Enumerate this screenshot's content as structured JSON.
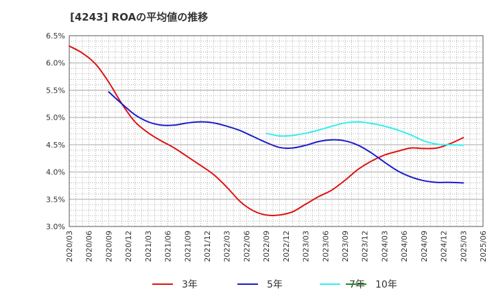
{
  "chart_data": {
    "type": "line",
    "title": "[4243]  ROAの平均値の推移",
    "xlabel": "",
    "ylabel": "",
    "ylim": [
      3.0,
      6.5
    ],
    "grid": true,
    "legend_position": "bottom",
    "y_ticks": [
      "3.0%",
      "3.5%",
      "4.0%",
      "4.5%",
      "5.0%",
      "5.5%",
      "6.0%",
      "6.5%"
    ],
    "x_ticks": [
      "2020/03",
      "2020/06",
      "2020/09",
      "2020/12",
      "2021/03",
      "2021/06",
      "2021/09",
      "2021/12",
      "2022/03",
      "2022/06",
      "2022/09",
      "2022/12",
      "2023/03",
      "2023/06",
      "2023/09",
      "2023/12",
      "2024/03",
      "2024/06",
      "2024/09",
      "2024/12",
      "2025/03",
      "2025/06"
    ],
    "series": [
      {
        "name": "3年",
        "color": "#dd1111",
        "points": [
          [
            "2020/03",
            6.31
          ],
          [
            "2020/05",
            6.18
          ],
          [
            "2020/07",
            5.98
          ],
          [
            "2020/09",
            5.65
          ],
          [
            "2020/11",
            5.25
          ],
          [
            "2021/01",
            4.92
          ],
          [
            "2021/03",
            4.72
          ],
          [
            "2021/05",
            4.57
          ],
          [
            "2021/07",
            4.44
          ],
          [
            "2021/09",
            4.28
          ],
          [
            "2021/11",
            4.12
          ],
          [
            "2022/01",
            3.95
          ],
          [
            "2022/03",
            3.72
          ],
          [
            "2022/05",
            3.46
          ],
          [
            "2022/07",
            3.29
          ],
          [
            "2022/09",
            3.21
          ],
          [
            "2022/11",
            3.21
          ],
          [
            "2023/01",
            3.27
          ],
          [
            "2023/03",
            3.41
          ],
          [
            "2023/05",
            3.55
          ],
          [
            "2023/07",
            3.67
          ],
          [
            "2023/09",
            3.85
          ],
          [
            "2023/11",
            4.05
          ],
          [
            "2024/01",
            4.2
          ],
          [
            "2024/03",
            4.31
          ],
          [
            "2024/05",
            4.38
          ],
          [
            "2024/07",
            4.44
          ],
          [
            "2024/09",
            4.43
          ],
          [
            "2024/11",
            4.44
          ],
          [
            "2025/01",
            4.52
          ],
          [
            "2025/03",
            4.63
          ]
        ]
      },
      {
        "name": "5年",
        "color": "#1a1acc",
        "points": [
          [
            "2020/09",
            5.47
          ],
          [
            "2020/11",
            5.25
          ],
          [
            "2021/01",
            5.05
          ],
          [
            "2021/03",
            4.92
          ],
          [
            "2021/05",
            4.86
          ],
          [
            "2021/07",
            4.86
          ],
          [
            "2021/09",
            4.9
          ],
          [
            "2021/11",
            4.92
          ],
          [
            "2022/01",
            4.9
          ],
          [
            "2022/03",
            4.84
          ],
          [
            "2022/05",
            4.76
          ],
          [
            "2022/07",
            4.65
          ],
          [
            "2022/09",
            4.54
          ],
          [
            "2022/11",
            4.45
          ],
          [
            "2023/01",
            4.44
          ],
          [
            "2023/03",
            4.49
          ],
          [
            "2023/05",
            4.56
          ],
          [
            "2023/07",
            4.59
          ],
          [
            "2023/09",
            4.57
          ],
          [
            "2023/11",
            4.49
          ],
          [
            "2024/01",
            4.35
          ],
          [
            "2024/03",
            4.18
          ],
          [
            "2024/05",
            4.02
          ],
          [
            "2024/07",
            3.91
          ],
          [
            "2024/09",
            3.84
          ],
          [
            "2024/11",
            3.81
          ],
          [
            "2025/01",
            3.81
          ],
          [
            "2025/03",
            3.8
          ]
        ]
      },
      {
        "name": "7年",
        "color": "#33eeee",
        "points": [
          [
            "2022/09",
            4.71
          ],
          [
            "2022/11",
            4.66
          ],
          [
            "2023/01",
            4.67
          ],
          [
            "2023/03",
            4.71
          ],
          [
            "2023/05",
            4.77
          ],
          [
            "2023/07",
            4.84
          ],
          [
            "2023/09",
            4.9
          ],
          [
            "2023/11",
            4.92
          ],
          [
            "2024/01",
            4.89
          ],
          [
            "2024/03",
            4.84
          ],
          [
            "2024/05",
            4.77
          ],
          [
            "2024/07",
            4.68
          ],
          [
            "2024/09",
            4.57
          ],
          [
            "2024/11",
            4.51
          ],
          [
            "2025/01",
            4.5
          ],
          [
            "2025/03",
            4.49
          ]
        ]
      },
      {
        "name": "10年",
        "color": "#228822",
        "points": []
      }
    ]
  }
}
